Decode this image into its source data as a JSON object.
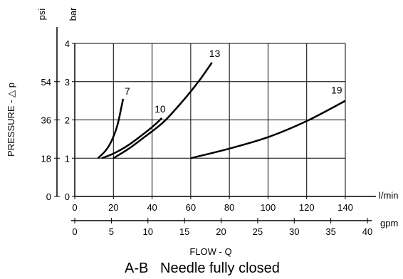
{
  "chart_data": {
    "type": "line",
    "caption": "A-B   Needle fully closed",
    "xlabel": "FLOW - Q",
    "ylabel": "PRESSURE - △ p",
    "x_unit": "l/min",
    "x2_unit": "gpm",
    "y_unit": "bar",
    "y2_unit": "psi",
    "xlim": [
      0,
      140
    ],
    "ylim": [
      0,
      4
    ],
    "x_ticks": [
      "0",
      "20",
      "40",
      "60",
      "80",
      "100",
      "120",
      "140"
    ],
    "y_ticks": [
      "0",
      "1",
      "2",
      "3",
      "4"
    ],
    "x2_ticks": [
      "0",
      "5",
      "10",
      "15",
      "20",
      "25",
      "30",
      "35",
      "40"
    ],
    "x2_tick_values": [
      0,
      5,
      10,
      15,
      20,
      25,
      30,
      35,
      40
    ],
    "y2_ticks": [
      "0",
      "18",
      "36",
      "54"
    ],
    "y2_tick_values": [
      0,
      18,
      36,
      54
    ],
    "grid": true,
    "series": [
      {
        "name": "7",
        "x": [
          12,
          16,
          19,
          22,
          24,
          25
        ],
        "y": [
          1.0,
          1.2,
          1.45,
          1.85,
          2.3,
          2.55
        ]
      },
      {
        "name": "10",
        "x": [
          14,
          20,
          28,
          36,
          42,
          45
        ],
        "y": [
          1.0,
          1.12,
          1.35,
          1.65,
          1.9,
          2.05
        ]
      },
      {
        "name": "13",
        "x": [
          20,
          28,
          36,
          46,
          56,
          64,
          71
        ],
        "y": [
          1.0,
          1.25,
          1.55,
          1.95,
          2.5,
          3.0,
          3.5
        ]
      },
      {
        "name": "19",
        "x": [
          60,
          80,
          100,
          120,
          140
        ],
        "y": [
          1.0,
          1.25,
          1.55,
          1.97,
          2.5
        ]
      }
    ]
  }
}
